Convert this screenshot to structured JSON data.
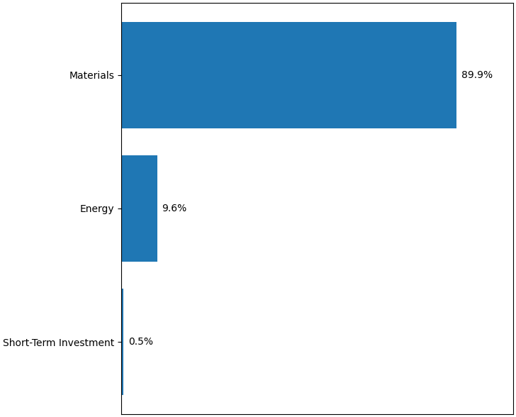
{
  "chart_data": {
    "type": "bar",
    "orientation": "horizontal",
    "categories": [
      "Materials",
      "Energy",
      "Short-Term Investment"
    ],
    "values": [
      89.9,
      9.6,
      0.5
    ],
    "value_labels": [
      "89.9%",
      "9.6%",
      "0.5%"
    ],
    "data_labels": true,
    "xlim": [
      0,
      105
    ],
    "tick_labels": "y"
  }
}
